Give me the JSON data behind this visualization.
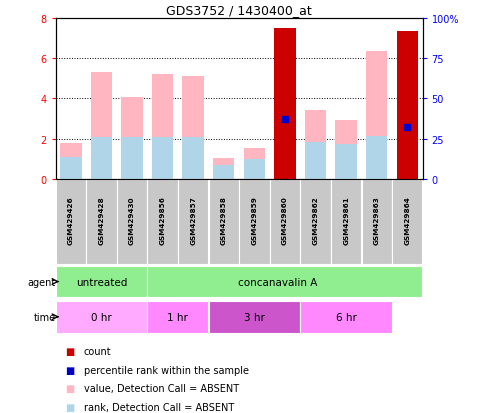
{
  "title": "GDS3752 / 1430400_at",
  "samples": [
    "GSM429426",
    "GSM429428",
    "GSM429430",
    "GSM429856",
    "GSM429857",
    "GSM429858",
    "GSM429859",
    "GSM429860",
    "GSM429862",
    "GSM429861",
    "GSM429863",
    "GSM429864"
  ],
  "pink_bar_values": [
    1.8,
    5.3,
    4.05,
    5.2,
    5.1,
    1.05,
    1.55,
    7.5,
    3.4,
    2.95,
    6.35,
    7.35
  ],
  "blue_bar_values": [
    1.1,
    2.1,
    2.1,
    2.1,
    2.1,
    0.7,
    1.0,
    3.0,
    1.85,
    1.75,
    2.15,
    2.6
  ],
  "red_bar_samples": [
    7,
    11
  ],
  "red_bar_values": [
    7.5,
    7.35
  ],
  "blue_dot_samples": [
    7,
    11
  ],
  "blue_dot_values": [
    3.0,
    2.6
  ],
  "ylim_left": [
    0,
    8
  ],
  "ylim_right": [
    0,
    100
  ],
  "yticks_left": [
    0,
    2,
    4,
    6,
    8
  ],
  "yticks_right": [
    0,
    25,
    50,
    75,
    100
  ],
  "ytick_labels_right": [
    "0",
    "25",
    "50",
    "75",
    "100%"
  ],
  "pink_color": "#FFB6C1",
  "light_blue_color": "#B0D4E8",
  "red_color": "#CC0000",
  "blue_color": "#0000CC",
  "sample_bg_color": "#C8C8C8",
  "agent_untreated_color": "#90EE90",
  "agent_con_color": "#90EE90",
  "time_colors": [
    "#FFAAFF",
    "#FF88FF",
    "#CC55CC",
    "#FF88FF"
  ],
  "legend_items": [
    {
      "color": "#CC0000",
      "label": "count"
    },
    {
      "color": "#0000CC",
      "label": "percentile rank within the sample"
    },
    {
      "color": "#FFB6C1",
      "label": "value, Detection Call = ABSENT"
    },
    {
      "color": "#B0D4E8",
      "label": "rank, Detection Call = ABSENT"
    }
  ]
}
